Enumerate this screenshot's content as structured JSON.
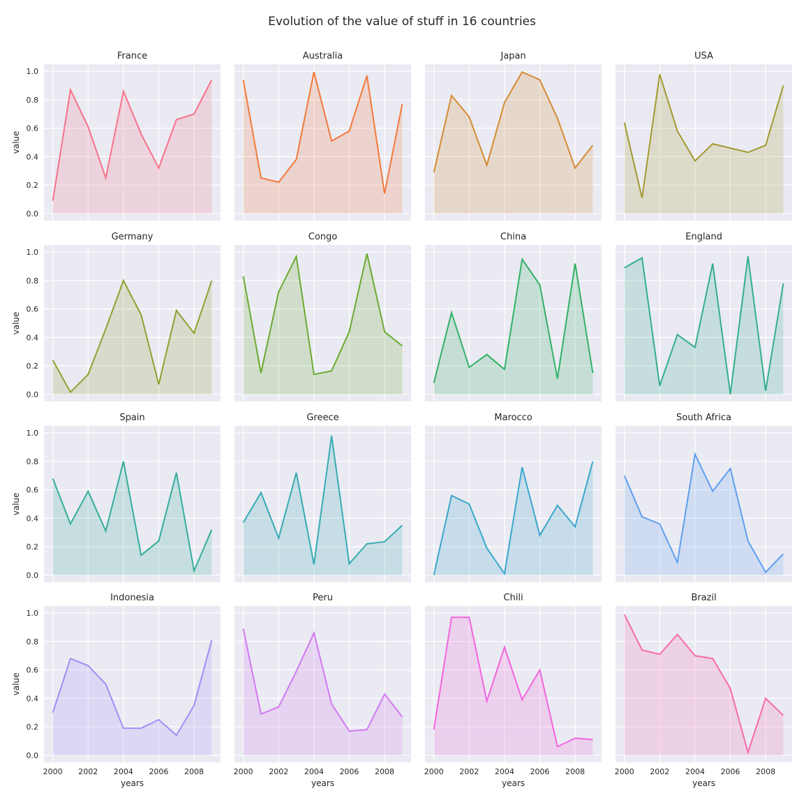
{
  "chart_data": {
    "type": "area",
    "title": "Evolution of the value of stuff in 16 countries",
    "xlabel": "years",
    "ylabel": "value",
    "x": [
      2000,
      2001,
      2002,
      2003,
      2004,
      2005,
      2006,
      2007,
      2008,
      2009
    ],
    "xticks": [
      2000,
      2002,
      2004,
      2006,
      2008
    ],
    "yticks": [
      0.0,
      0.2,
      0.4,
      0.6,
      0.8,
      1.0
    ],
    "ylim": [
      -0.05,
      1.05
    ],
    "xlim": [
      1999.5,
      2009.5
    ],
    "grid": true,
    "background": "#eaeaf2",
    "series": [
      {
        "name": "France",
        "color": "#f77189",
        "values": [
          0.09,
          0.87,
          0.61,
          0.25,
          0.86,
          0.56,
          0.32,
          0.66,
          0.7,
          0.94
        ]
      },
      {
        "name": "Australia",
        "color": "#f3793b",
        "values": [
          0.94,
          0.25,
          0.22,
          0.38,
          0.995,
          0.51,
          0.58,
          0.97,
          0.14,
          0.77
        ]
      },
      {
        "name": "Japan",
        "color": "#d58c32",
        "values": [
          0.29,
          0.83,
          0.68,
          0.34,
          0.78,
          0.995,
          0.94,
          0.67,
          0.32,
          0.48
        ]
      },
      {
        "name": "USA",
        "color": "#a39a31",
        "values": [
          0.64,
          0.11,
          0.98,
          0.58,
          0.37,
          0.49,
          0.46,
          0.43,
          0.48,
          0.9
        ]
      },
      {
        "name": "Germany",
        "color": "#8ea231",
        "values": [
          0.24,
          0.015,
          0.14,
          0.46,
          0.8,
          0.56,
          0.07,
          0.59,
          0.43,
          0.8
        ]
      },
      {
        "name": "Congo",
        "color": "#6aab31",
        "values": [
          0.83,
          0.15,
          0.72,
          0.97,
          0.14,
          0.165,
          0.44,
          0.99,
          0.44,
          0.34
        ]
      },
      {
        "name": "China",
        "color": "#32b166",
        "values": [
          0.08,
          0.575,
          0.19,
          0.28,
          0.175,
          0.95,
          0.77,
          0.11,
          0.92,
          0.15
        ]
      },
      {
        "name": "England",
        "color": "#34ae8d",
        "values": [
          0.89,
          0.96,
          0.06,
          0.42,
          0.33,
          0.92,
          0.0,
          0.97,
          0.025,
          0.78
        ]
      },
      {
        "name": "Spain",
        "color": "#35ad9c",
        "values": [
          0.68,
          0.36,
          0.59,
          0.31,
          0.8,
          0.14,
          0.24,
          0.72,
          0.03,
          0.32
        ]
      },
      {
        "name": "Greece",
        "color": "#37abb4",
        "values": [
          0.37,
          0.58,
          0.26,
          0.72,
          0.075,
          0.98,
          0.08,
          0.22,
          0.235,
          0.35
        ]
      },
      {
        "name": "Marocco",
        "color": "#39a7cb",
        "values": [
          0.0,
          0.56,
          0.5,
          0.19,
          0.01,
          0.76,
          0.28,
          0.49,
          0.34,
          0.8
        ]
      },
      {
        "name": "South Africa",
        "color": "#5e9ff0",
        "values": [
          0.7,
          0.41,
          0.36,
          0.09,
          0.85,
          0.59,
          0.75,
          0.24,
          0.02,
          0.15
        ]
      },
      {
        "name": "Indonesia",
        "color": "#a48cf4",
        "values": [
          0.3,
          0.68,
          0.63,
          0.5,
          0.19,
          0.19,
          0.25,
          0.14,
          0.35,
          0.81
        ]
      },
      {
        "name": "Peru",
        "color": "#d278f2",
        "values": [
          0.89,
          0.29,
          0.34,
          0.59,
          0.86,
          0.36,
          0.17,
          0.18,
          0.43,
          0.27
        ]
      },
      {
        "name": "Chili",
        "color": "#f265dd",
        "values": [
          0.18,
          0.97,
          0.97,
          0.38,
          0.76,
          0.39,
          0.6,
          0.06,
          0.12,
          0.11
        ]
      },
      {
        "name": "Brazil",
        "color": "#f66bac",
        "values": [
          0.99,
          0.74,
          0.71,
          0.85,
          0.7,
          0.68,
          0.47,
          0.02,
          0.4,
          0.28
        ]
      }
    ]
  }
}
